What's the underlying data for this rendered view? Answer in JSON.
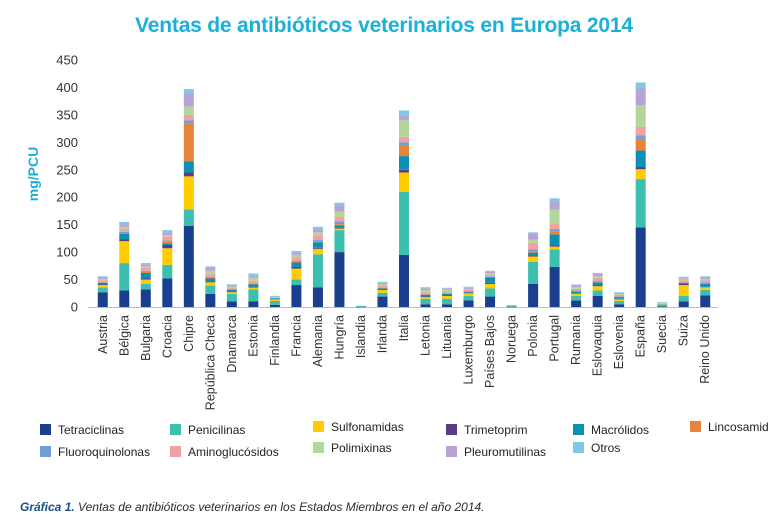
{
  "chart_data": {
    "type": "bar",
    "stacked": true,
    "title": "Ventas de antibióticos veterinarios en Europa 2014",
    "ylabel": "mg/PCU",
    "xlabel": "",
    "ylim": [
      0,
      450
    ],
    "yticks": [
      0,
      50,
      100,
      150,
      200,
      250,
      300,
      350,
      400,
      450
    ],
    "grid": false,
    "legend_position": "bottom",
    "categories": [
      "Austria",
      "Bélgica",
      "Bulgaria",
      "Croacia",
      "Chipre",
      "República Checa",
      "Dnamarca",
      "Estonia",
      "Finlandia",
      "Francia",
      "Alemania",
      "Hungría",
      "Islandia",
      "Irlanda",
      "Italia",
      "Letonia",
      "Lituania",
      "Luxemburgo",
      "Países Bajos",
      "Noruega",
      "Polonia",
      "Portugal",
      "Rumania",
      "Eslovaquia",
      "Eslovenia",
      "España",
      "Suecia",
      "Suiza",
      "Reino Unido"
    ],
    "series": [
      {
        "name": "Tetraciclinas",
        "color": "#1a3f8f",
        "values": [
          27,
          30,
          32,
          52,
          148,
          24,
          10,
          10,
          4,
          40,
          36,
          100,
          0.5,
          19,
          95,
          5,
          5,
          12,
          19,
          0.5,
          42,
          73,
          12,
          20,
          5,
          145,
          1,
          10,
          21
        ]
      },
      {
        "name": "Penicilinas",
        "color": "#3cbfae",
        "values": [
          9,
          50,
          10,
          25,
          30,
          15,
          14,
          22,
          7,
          10,
          60,
          40,
          1.5,
          7,
          115,
          10,
          10,
          8,
          15,
          2.5,
          40,
          32,
          8,
          10,
          6,
          88,
          4,
          10,
          10
        ]
      },
      {
        "name": "Sulfonamidas",
        "color": "#ffcc00",
        "values": [
          4,
          40,
          8,
          30,
          60,
          6,
          3,
          3,
          3,
          20,
          10,
          3,
          0,
          5,
          35,
          3,
          5,
          5,
          8,
          0,
          10,
          5,
          4,
          8,
          3,
          18,
          1,
          20,
          5
        ]
      },
      {
        "name": "Trimetoprim",
        "color": "#5a3e85",
        "values": [
          1,
          3,
          2,
          6,
          7,
          2,
          1,
          1,
          1,
          3,
          2,
          1,
          0,
          1,
          5,
          1,
          1,
          1,
          2,
          0,
          2,
          2,
          1,
          2,
          1,
          4,
          0,
          2,
          1
        ]
      },
      {
        "name": "Macrólidos",
        "color": "#0b8fb3",
        "values": [
          3,
          10,
          10,
          3,
          20,
          5,
          3,
          5,
          1,
          8,
          10,
          5,
          0,
          2,
          25,
          3,
          3,
          2,
          10,
          0,
          5,
          20,
          3,
          5,
          3,
          30,
          0,
          2,
          5
        ]
      },
      {
        "name": "Lincosamidas",
        "color": "#e8833a",
        "values": [
          1,
          1,
          2,
          3,
          70,
          1,
          1,
          1,
          0,
          1,
          2,
          2,
          0,
          1,
          20,
          1,
          1,
          0,
          1,
          0,
          2,
          5,
          1,
          1,
          0,
          20,
          0,
          1,
          1
        ]
      },
      {
        "name": "Fluoroquinolonas",
        "color": "#6f9fd8",
        "values": [
          1,
          3,
          2,
          2,
          5,
          2,
          0.5,
          1,
          0.5,
          2,
          2,
          5,
          0,
          1,
          5,
          1,
          1,
          0,
          1,
          0,
          4,
          5,
          1,
          2,
          1,
          8,
          0,
          1,
          2
        ]
      },
      {
        "name": "Aminoglucósidos",
        "color": "#f2a1a3",
        "values": [
          3,
          5,
          5,
          8,
          10,
          5,
          2,
          5,
          1,
          6,
          8,
          8,
          0,
          3,
          10,
          3,
          3,
          3,
          3,
          0,
          12,
          10,
          3,
          5,
          3,
          15,
          1,
          3,
          4
        ]
      },
      {
        "name": "Polimixinas",
        "color": "#b5d69a",
        "values": [
          2,
          4,
          3,
          2,
          15,
          6,
          3,
          5,
          1,
          5,
          6,
          10,
          0,
          3,
          30,
          4,
          3,
          2,
          3,
          0,
          6,
          25,
          3,
          3,
          2,
          40,
          1,
          3,
          2
        ]
      },
      {
        "name": "Pleuromutilinas",
        "color": "#b7a4d6",
        "values": [
          3,
          5,
          4,
          5,
          25,
          5,
          3,
          5,
          1,
          4,
          6,
          10,
          0,
          2,
          8,
          3,
          2,
          2,
          2,
          0,
          10,
          15,
          3,
          4,
          2,
          30,
          0,
          2,
          3
        ]
      },
      {
        "name": "Otros",
        "color": "#7ec8e3",
        "values": [
          2,
          4,
          2,
          4,
          7,
          3,
          1,
          3,
          0.5,
          3,
          4,
          6,
          0,
          2,
          10,
          2,
          1,
          2,
          2,
          0,
          3,
          6,
          2,
          2,
          1,
          11,
          1,
          1,
          2
        ]
      }
    ]
  },
  "caption": {
    "lead": "Gráfica 1.",
    "text": "Ventas de antibióticos veterinarios en los Estados Miembros en el año 2014."
  }
}
